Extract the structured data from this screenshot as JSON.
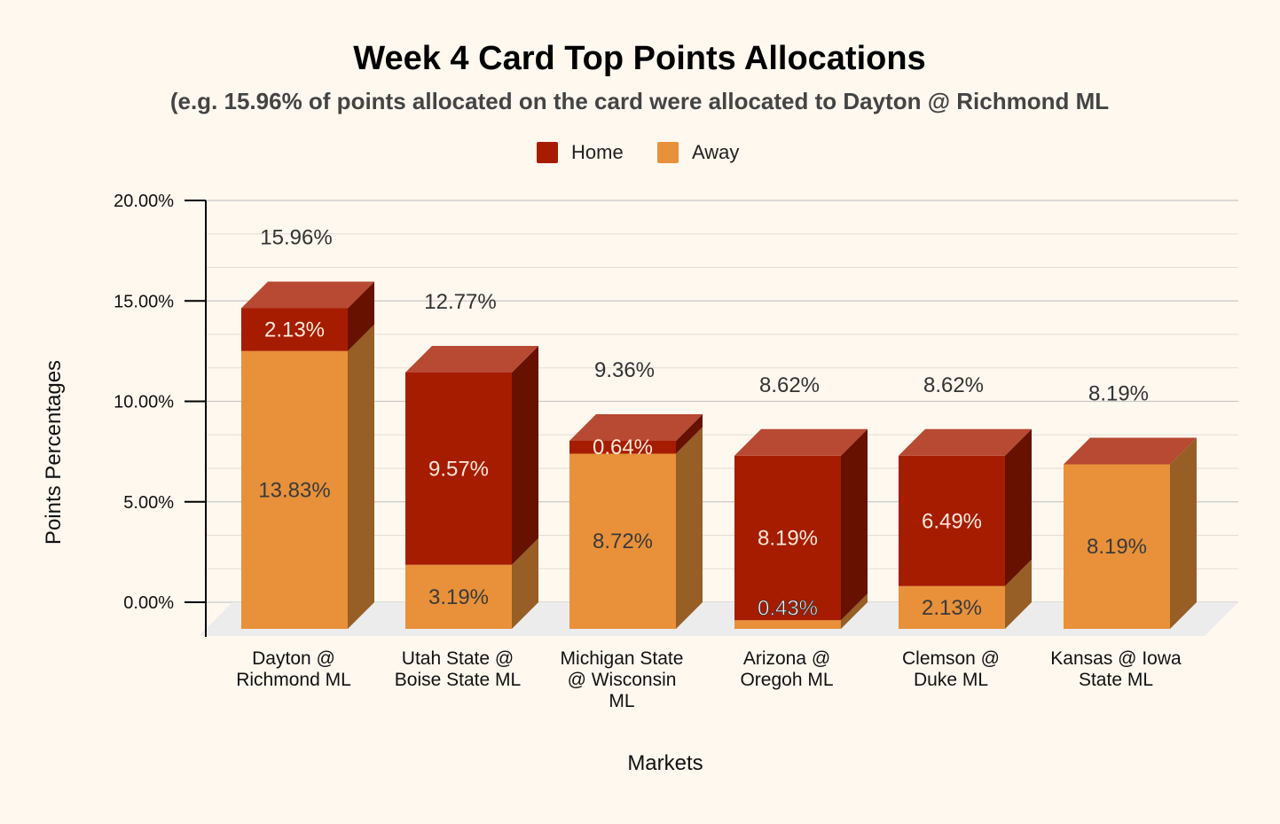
{
  "chart_data": {
    "type": "bar",
    "stacked": true,
    "title": "Week 4 Card Top Points Allocations",
    "subtitle": "(e.g. 15.96% of points allocated on the card were allocated to Dayton @ Richmond ML",
    "xlabel": "Markets",
    "ylabel": "Points Percentages",
    "ylim": [
      0,
      20
    ],
    "yticks": [
      0,
      5,
      10,
      15,
      20
    ],
    "ytick_labels": [
      "0.00%",
      "5.00%",
      "10.00%",
      "15.00%",
      "20.00%"
    ],
    "legend_position": "top-center",
    "categories": [
      [
        "Dayton @",
        "Richmond ML"
      ],
      [
        "Utah State @",
        "Boise State ML"
      ],
      [
        "Michigan State",
        "@ Wisconsin",
        "ML"
      ],
      [
        "Arizona @",
        "Oregoh ML"
      ],
      [
        "Clemson @",
        "Duke ML"
      ],
      [
        "Kansas @ Iowa",
        "State ML"
      ]
    ],
    "series": [
      {
        "name": "Away",
        "color": "#e8913a",
        "values": [
          13.83,
          3.19,
          8.72,
          0.43,
          2.13,
          8.19
        ],
        "labels": [
          "13.83%",
          "3.19%",
          "8.72%",
          "0.43%",
          "2.13%",
          "8.19%"
        ]
      },
      {
        "name": "Home",
        "color": "#a61c00",
        "values": [
          2.13,
          9.57,
          0.64,
          8.19,
          6.49,
          0
        ],
        "labels": [
          "2.13%",
          "9.57%",
          "0.64%",
          "8.19%",
          "6.49%",
          ""
        ]
      }
    ],
    "totals": [
      15.96,
      12.77,
      9.36,
      8.62,
      8.62,
      8.19
    ],
    "total_labels": [
      "15.96%",
      "12.77%",
      "9.36%",
      "8.62%",
      "8.62%",
      "8.19%"
    ]
  }
}
